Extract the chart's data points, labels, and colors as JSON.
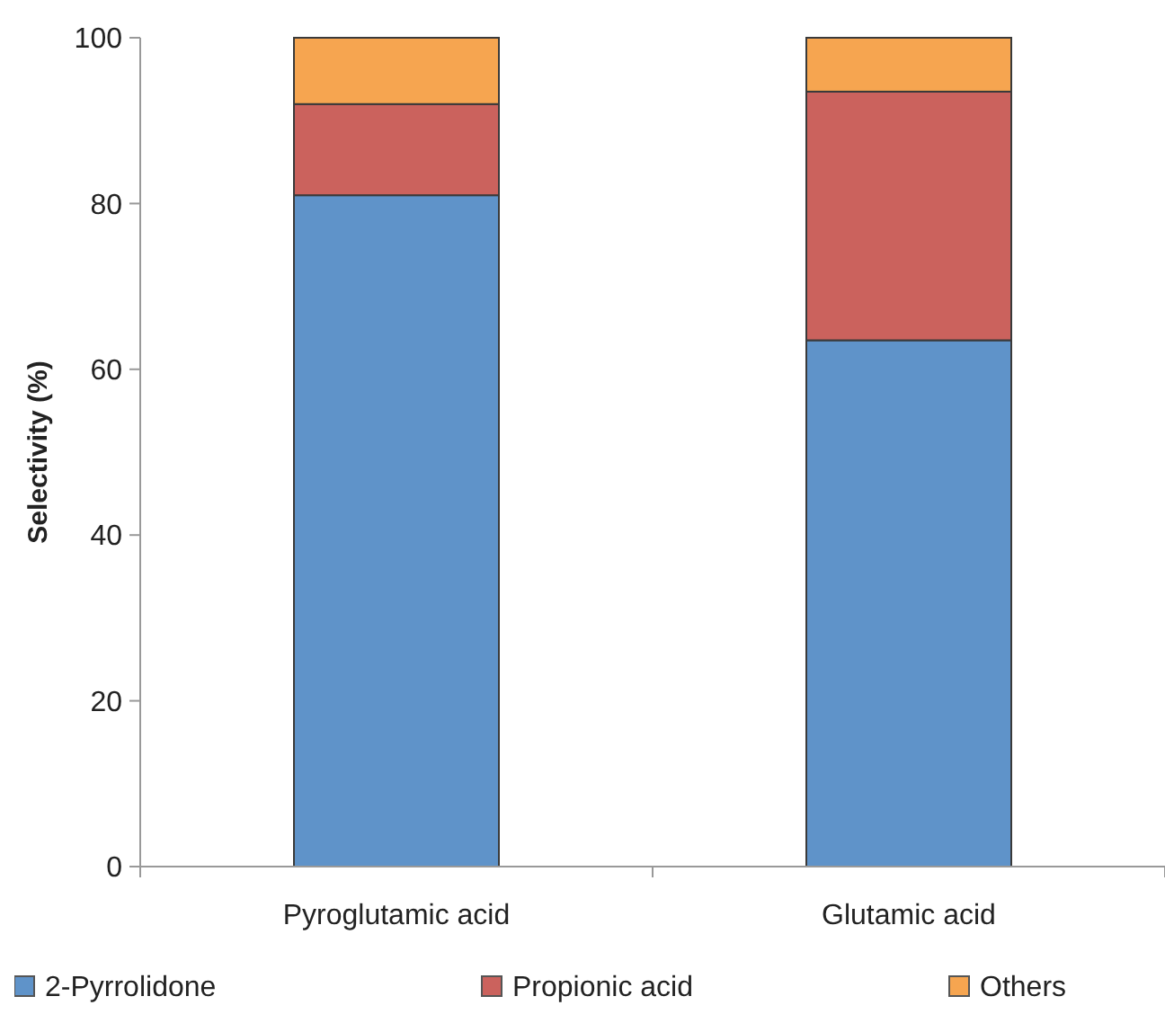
{
  "chart_data": {
    "type": "bar",
    "stacked": true,
    "ylabel": "Selectivity (%)",
    "categories": [
      "Pyroglutamic acid",
      "Glutamic acid"
    ],
    "series": [
      {
        "name": "2-Pyrrolidone",
        "color": "#5f93c9",
        "values": [
          81,
          63.5
        ]
      },
      {
        "name": "Propionic acid",
        "color": "#cb625d",
        "values": [
          11,
          30
        ]
      },
      {
        "name": "Others",
        "color": "#f6a550",
        "values": [
          8,
          6.5
        ]
      }
    ],
    "ylim": [
      0,
      100
    ],
    "yticks": [
      0,
      20,
      40,
      60,
      80,
      100
    ],
    "grid": false,
    "legend": "bottom"
  }
}
